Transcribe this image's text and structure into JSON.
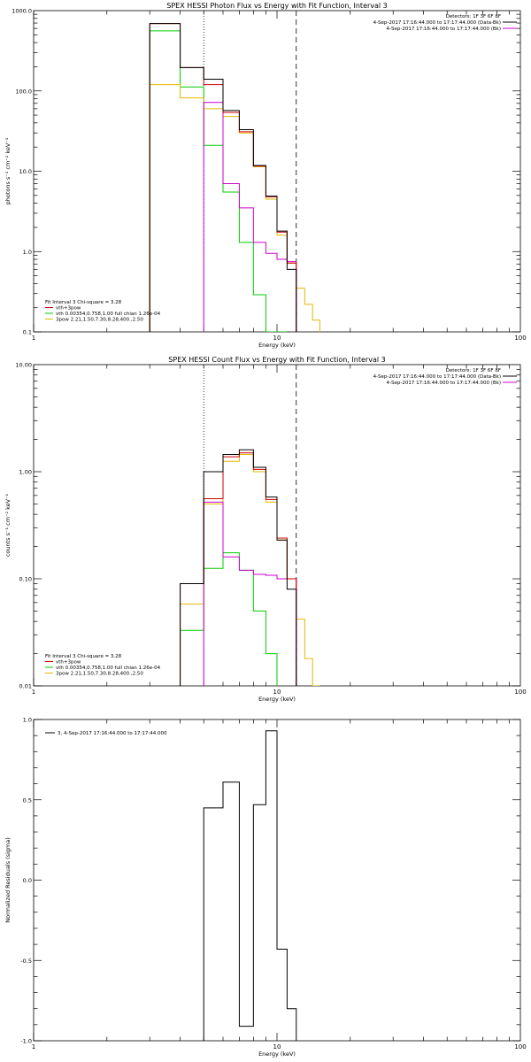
{
  "colors": {
    "data": "#000000",
    "total": "#cc0000",
    "vth": "#00cc00",
    "pow": "#e6b800",
    "bk": "#cc00cc"
  },
  "chart_data": [
    {
      "type": "line",
      "title": "SPEX HESSI Photon Flux vs Energy with Fit Function, Interval 3",
      "xlabel": "Energy (keV)",
      "ylabel": "photons s⁻¹ cm⁻² keV⁻¹",
      "xscale": "log",
      "yscale": "log",
      "xlim": [
        1,
        100
      ],
      "ylim": [
        0.1,
        1000
      ],
      "xticks": [
        {
          "v": 1,
          "t": "1"
        },
        {
          "v": 10,
          "t": "10"
        },
        {
          "v": 100,
          "t": "100"
        }
      ],
      "yticks": [
        {
          "v": 0.1,
          "t": "0.1"
        },
        {
          "v": 1,
          "t": "1.0"
        },
        {
          "v": 10,
          "t": "10.0"
        },
        {
          "v": 100,
          "t": "100.0"
        },
        {
          "v": 1000,
          "t": "1000.0"
        }
      ],
      "vlines": [
        {
          "x": 5.0,
          "style": "dotted"
        },
        {
          "x": 12.0,
          "style": "dashed"
        }
      ],
      "legend_right_title": "Detectors: 1F 3F 6F 8F",
      "legend_right": [
        {
          "text": "4-Sep-2017 17:16:44.000 to 17:17:44.000 (Data-Bk)",
          "series": "data"
        },
        {
          "text": "4-Sep-2017 17:16:44.000 to 17:17:44.000 (Bk)",
          "series": "bk"
        }
      ],
      "legend_left_title": "Fit Interval 3   Chi-square = 3.28",
      "legend_left": [
        {
          "text": "vth+3pow",
          "series": "total"
        },
        {
          "text": "vth 0.00354,0.758,1.00  full chian 1.26e-04",
          "series": "vth"
        },
        {
          "text": "3pow 2.21,1.50,7.30,8.28,400.,2.50",
          "series": "pow"
        }
      ],
      "series": [
        {
          "key": "data",
          "edges": [
            3,
            4,
            5,
            6,
            7,
            8,
            9,
            10,
            11,
            12
          ],
          "values": [
            690,
            195,
            140,
            57,
            33,
            11.8,
            4.9,
            1.8,
            0.6
          ]
        },
        {
          "key": "total",
          "edges": [
            3,
            4,
            5,
            6,
            7,
            8,
            9,
            10,
            11,
            12
          ],
          "values": [
            690,
            195,
            120,
            54,
            31,
            11.6,
            4.8,
            1.75,
            0.72
          ]
        },
        {
          "key": "vth",
          "edges": [
            3,
            4,
            5,
            6,
            7,
            8,
            9,
            10,
            11
          ],
          "values": [
            560,
            112,
            21,
            5.5,
            1.3,
            0.29,
            0.1,
            0.1
          ]
        },
        {
          "key": "pow",
          "edges": [
            3,
            4,
            5,
            6,
            7,
            8,
            9,
            10,
            11,
            12,
            13,
            14,
            15
          ],
          "values": [
            120,
            82,
            60,
            48,
            30,
            11.4,
            4.5,
            1.6,
            0.72,
            0.35,
            0.22,
            0.14
          ]
        },
        {
          "key": "bk",
          "edges": [
            5,
            6,
            7,
            8,
            9,
            10,
            11,
            12
          ],
          "values": [
            72,
            7,
            3.5,
            1.3,
            0.95,
            0.8,
            0.75
          ]
        }
      ]
    },
    {
      "type": "line",
      "title": "SPEX HESSI Count Flux vs Energy with Fit Function, Interval 3",
      "xlabel": "Energy (keV)",
      "ylabel": "counts s⁻¹ cm⁻² keV⁻¹",
      "xscale": "log",
      "yscale": "log",
      "xlim": [
        1,
        100
      ],
      "ylim": [
        0.01,
        10
      ],
      "xticks": [
        {
          "v": 1,
          "t": "1"
        },
        {
          "v": 10,
          "t": "10"
        },
        {
          "v": 100,
          "t": "100"
        }
      ],
      "yticks": [
        {
          "v": 0.01,
          "t": "0.01"
        },
        {
          "v": 0.1,
          "t": "0.10"
        },
        {
          "v": 1,
          "t": "1.00"
        },
        {
          "v": 10,
          "t": "10.00"
        }
      ],
      "vlines": [
        {
          "x": 5.0,
          "style": "dotted"
        },
        {
          "x": 12.0,
          "style": "dashed"
        }
      ],
      "legend_right_title": "Detectors: 1F 3F 6F 8F",
      "legend_right": [
        {
          "text": "4-Sep-2017 17:16:44.000 to 17:17:44.000 (Data-Bk)",
          "series": "data"
        },
        {
          "text": "4-Sep-2017 17:16:44.000 to 17:17:44.000 (Bk)",
          "series": "bk"
        }
      ],
      "legend_left_title": "Fit Interval 3   Chi-square = 3.28",
      "legend_left": [
        {
          "text": "vth+3pow",
          "series": "total"
        },
        {
          "text": "vth 0.00354,0.758,1.00  full chian 1.26e-04",
          "series": "vth"
        },
        {
          "text": "3pow 2.21,1.50,7.30,8.28,400.,2.50",
          "series": "pow"
        }
      ],
      "series": [
        {
          "key": "data",
          "edges": [
            4,
            5,
            6,
            7,
            8,
            9,
            10,
            11,
            12
          ],
          "values": [
            0.09,
            1.0,
            1.45,
            1.6,
            1.1,
            0.58,
            0.23,
            0.08
          ]
        },
        {
          "key": "total",
          "edges": [
            4,
            5,
            6,
            7,
            8,
            9,
            10,
            11,
            12
          ],
          "values": [
            0.09,
            0.56,
            1.38,
            1.5,
            1.05,
            0.55,
            0.24,
            0.1
          ]
        },
        {
          "key": "vth",
          "edges": [
            4,
            5,
            6,
            7,
            8,
            9,
            10
          ],
          "values": [
            0.033,
            0.125,
            0.175,
            0.12,
            0.05,
            0.02
          ]
        },
        {
          "key": "pow",
          "edges": [
            4,
            5,
            6,
            7,
            8,
            9,
            10,
            11,
            12,
            13,
            14,
            15
          ],
          "values": [
            0.058,
            0.5,
            1.25,
            1.45,
            1.0,
            0.52,
            0.23,
            0.1,
            0.042,
            0.018,
            0.01
          ]
        },
        {
          "key": "bk",
          "edges": [
            5,
            6,
            7,
            8,
            9,
            10,
            11,
            12
          ],
          "values": [
            0.52,
            0.16,
            0.12,
            0.11,
            0.108,
            0.1,
            0.1
          ]
        }
      ]
    },
    {
      "type": "line",
      "title": "",
      "xlabel": "Energy (keV)",
      "ylabel": "Normalized Residuals (sigma)",
      "xscale": "log",
      "yscale": "linear",
      "xlim": [
        1,
        100
      ],
      "ylim": [
        -1,
        1
      ],
      "xticks": [
        {
          "v": 1,
          "t": "1"
        },
        {
          "v": 10,
          "t": "10"
        },
        {
          "v": 100,
          "t": "100"
        }
      ],
      "yticks": [
        {
          "v": -1,
          "t": "-1.0"
        },
        {
          "v": -0.5,
          "t": "-0.5"
        },
        {
          "v": 0,
          "t": "0.0"
        },
        {
          "v": 0.5,
          "t": "0.5"
        },
        {
          "v": 1,
          "t": "1.0"
        }
      ],
      "legend_left_top": [
        {
          "text": "3,  4-Sep-2017 17:16:44.000 to 17:17:44.000",
          "series": "data"
        }
      ],
      "residuals": {
        "edges": [
          5,
          6,
          7,
          8,
          9,
          10,
          11,
          12
        ],
        "values": [
          0.45,
          0.61,
          -0.91,
          0.47,
          0.93,
          -0.43,
          -0.8
        ]
      }
    }
  ]
}
